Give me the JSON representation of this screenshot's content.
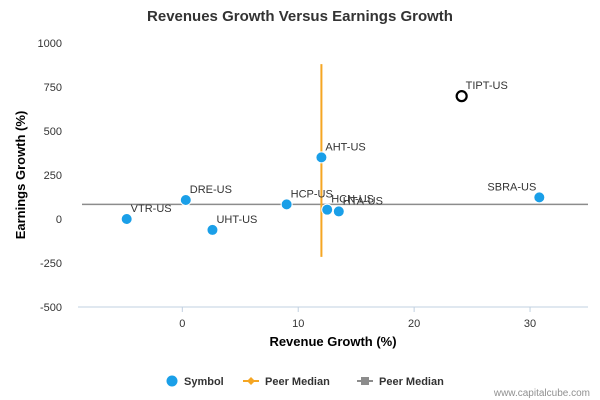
{
  "chart_data": {
    "type": "scatter",
    "title": "Revenues Growth Versus Earnings Growth",
    "xlabel": "Revenue Growth (%)",
    "ylabel": "Earnings Growth (%)",
    "xlim": [
      -9,
      35
    ],
    "ylim": [
      -500,
      1000
    ],
    "x_ticks": [
      0,
      10,
      20,
      30
    ],
    "y_ticks": [
      -500,
      -250,
      0,
      250,
      500,
      750,
      1000
    ],
    "x_tick_labels": [
      "0",
      "10",
      "20",
      "30"
    ],
    "y_tick_labels": [
      "-500",
      "-250",
      "0",
      "250",
      "500",
      "750",
      "1000"
    ],
    "points": [
      {
        "label": "VTR-US",
        "x": -4.8,
        "y": 0,
        "highlight": false
      },
      {
        "label": "DRE-US",
        "x": 0.3,
        "y": 108,
        "highlight": false
      },
      {
        "label": "UHT-US",
        "x": 2.6,
        "y": -62,
        "highlight": false
      },
      {
        "label": "HCP-US",
        "x": 9.0,
        "y": 83,
        "highlight": false
      },
      {
        "label": "AHT-US",
        "x": 12.0,
        "y": 350,
        "highlight": false
      },
      {
        "label": "HCN-US",
        "x": 12.5,
        "y": 53,
        "highlight": false
      },
      {
        "label": "HTA-US",
        "x": 13.5,
        "y": 43,
        "highlight": false
      },
      {
        "label": "SBRA-US",
        "x": 30.8,
        "y": 123,
        "highlight": false
      },
      {
        "label": "TIPT-US",
        "x": 24.1,
        "y": 698,
        "highlight": true
      }
    ],
    "peer_median_x": 12.0,
    "peer_median_x_range": [
      -215,
      880
    ],
    "peer_median_y": 83,
    "legend": [
      {
        "name": "Symbol",
        "type": "dot",
        "color": "#1a9fe8"
      },
      {
        "name": "Peer Median",
        "type": "line-diamond",
        "color": "#f5a623"
      },
      {
        "name": "Peer Median",
        "type": "line-square",
        "color": "#8c8c8c"
      }
    ],
    "legend_position": "bottom",
    "grid": false
  },
  "colors": {
    "point": "#1a9fe8",
    "point_stroke": "#ffffff",
    "highlight_stroke": "#000000",
    "orange_line": "#f5a623",
    "gray_line": "#8c8c8c",
    "axis": "#c0d0e0"
  },
  "credit": "www.capitalcube.com"
}
